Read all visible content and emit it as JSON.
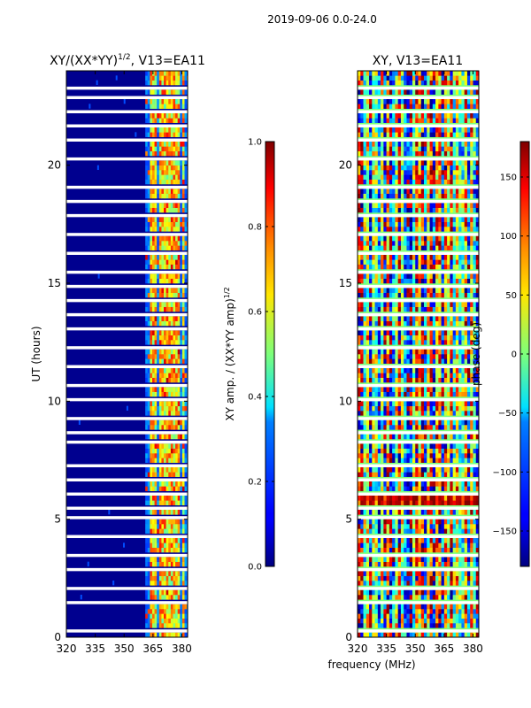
{
  "suptitle": "2019-09-06 0.0-24.0",
  "xlabel_shared": "frequency (MHz)",
  "chart_data": [
    {
      "type": "heatmap",
      "title": "XY/(XX*YY)",
      "title_exponent": "1/2",
      "title_suffix": ", V13=EA11",
      "ylabel": "UT (hours)",
      "x_range": [
        320,
        383
      ],
      "x_ticks": [
        "320",
        "335",
        "350",
        "365",
        "380"
      ],
      "y_range": [
        0,
        24
      ],
      "y_ticks": [
        "0",
        "5",
        "10",
        "15",
        "20"
      ],
      "colormap": "jet",
      "description_values": "normalized XY amplitude, mostly near 0 below 360 MHz, patchy 0.2-0.7 above 360 MHz"
    },
    {
      "type": "heatmap",
      "title": "XY, V13=EA11",
      "x_range": [
        320,
        383
      ],
      "x_ticks": [
        "320",
        "335",
        "350",
        "365",
        "380"
      ],
      "y_range": [
        0,
        24
      ],
      "y_ticks": [
        "0",
        "5",
        "10",
        "15",
        "20"
      ],
      "colormap": "jet",
      "description_values": "XY phase in degrees, spanning -180 to 180"
    }
  ],
  "colorbars": [
    {
      "label": "XY amp. / (XX*YY amp)",
      "label_exponent": "1/2",
      "range": [
        0.0,
        1.0
      ],
      "ticks": [
        "0.0",
        "0.2",
        "0.4",
        "0.6",
        "0.8",
        "1.0"
      ],
      "tick_values": [
        0.0,
        0.2,
        0.4,
        0.6,
        0.8,
        1.0
      ]
    },
    {
      "label": "phase (deg)",
      "range": [
        -180,
        180
      ],
      "ticks": [
        "−150",
        "−100",
        "−50",
        "0",
        "50",
        "100",
        "150"
      ],
      "tick_values": [
        -150,
        -100,
        -50,
        0,
        50,
        100,
        150
      ]
    }
  ],
  "gap_hours": [
    0.3,
    1.5,
    2.05,
    2.95,
    3.4,
    4.3,
    5.05,
    5.5,
    6.1,
    6.65,
    7.25,
    8.3,
    8.75,
    9.35,
    10.1,
    10.65,
    11.4,
    12.35,
    13.1,
    13.75,
    14.3,
    14.9,
    15.55,
    16.3,
    17.1,
    17.85,
    18.45,
    19.1,
    20.3,
    21.0,
    21.6,
    22.35,
    22.9,
    23.3
  ],
  "amp_bright_columns_mhz": [
    364,
    366,
    368.5,
    371,
    373.5,
    376,
    378,
    380
  ]
}
